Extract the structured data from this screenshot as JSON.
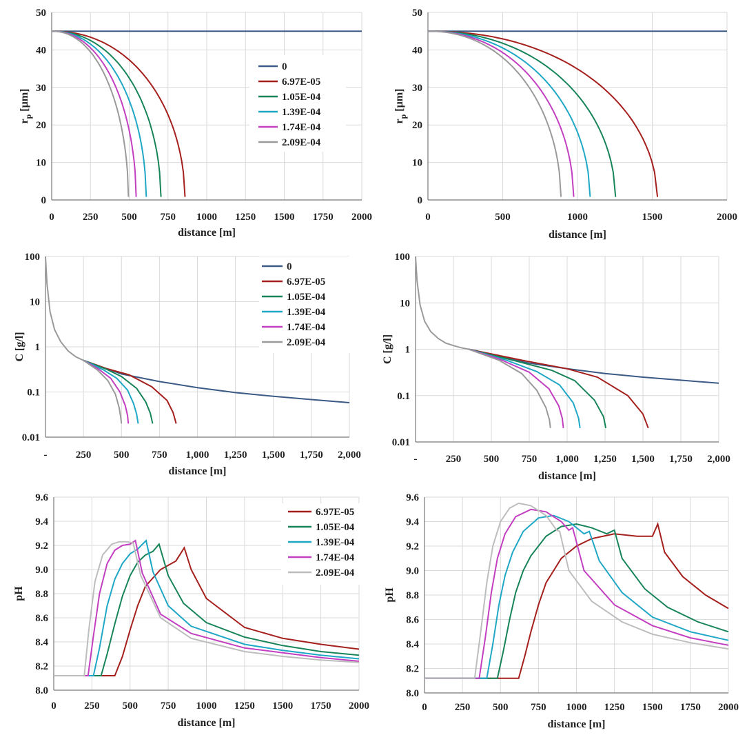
{
  "colors": {
    "0": "#3b5a86",
    "6.97E-05": "#a5201d",
    "1.05E-04": "#178459",
    "1.39E-04": "#1fa7c6",
    "1.74E-04": "#c33fc1",
    "2.09E-04": "#9a9a9a",
    "ph_cyan": "#33cccc",
    "ph_grey": "#bdbdbd",
    "grid": "#d9d9d9",
    "axis": "#777777"
  },
  "chart_data": [
    {
      "id": "rp-a",
      "type": "line",
      "xlabel": "distance  [m]",
      "ylabel": "r",
      "ylabel_sub": "p",
      "ylabel_unit": " [µm]",
      "xlim": [
        0,
        2000
      ],
      "ylim": [
        0,
        50
      ],
      "xticks": [
        0,
        250,
        500,
        750,
        1000,
        1250,
        1500,
        1750,
        2000
      ],
      "xtick_labels": [
        "0",
        "250",
        "500",
        "750",
        "1000",
        "1250",
        "1500",
        "1750",
        "2000"
      ],
      "yticks": [
        0,
        10,
        20,
        30,
        40,
        50
      ],
      "ytick_labels": [
        "0",
        "10",
        "20",
        "30",
        "40",
        "50"
      ],
      "legend": [
        "0",
        "6.97E-05",
        "1.05E-04",
        "1.39E-04",
        "1.74E-04",
        "2.09E-04"
      ],
      "series": [
        {
          "name": "0",
          "end_x": 2000,
          "r0": 45
        },
        {
          "name": "6.97E-05",
          "end_x": 860,
          "r0": 45
        },
        {
          "name": "1.05E-04",
          "end_x": 705,
          "r0": 45
        },
        {
          "name": "1.39E-04",
          "end_x": 610,
          "r0": 45
        },
        {
          "name": "1.74E-04",
          "end_x": 545,
          "r0": 45
        },
        {
          "name": "2.09E-04",
          "end_x": 495,
          "r0": 45
        }
      ]
    },
    {
      "id": "rp-b",
      "type": "line",
      "xlabel": "distance  [m]",
      "ylabel": "r",
      "ylabel_sub": "p",
      "ylabel_unit": " [µm]",
      "xlim": [
        0,
        2000
      ],
      "ylim": [
        0,
        50
      ],
      "xticks": [
        0,
        500,
        1000,
        1500,
        2000
      ],
      "xtick_labels": [
        "0",
        "500",
        "1000",
        "1500",
        "2000"
      ],
      "yticks": [
        0,
        10,
        20,
        30,
        40,
        50
      ],
      "ytick_labels": [
        "0",
        "10",
        "20",
        "30",
        "40",
        "50"
      ],
      "series": [
        {
          "name": "0",
          "end_x": 2000,
          "r0": 45
        },
        {
          "name": "6.97E-05",
          "end_x": 1535,
          "r0": 45
        },
        {
          "name": "1.05E-04",
          "end_x": 1255,
          "r0": 45
        },
        {
          "name": "1.39E-04",
          "end_x": 1085,
          "r0": 45
        },
        {
          "name": "1.74E-04",
          "end_x": 975,
          "r0": 45
        },
        {
          "name": "2.09E-04",
          "end_x": 890,
          "r0": 45
        }
      ]
    },
    {
      "id": "c-a",
      "type": "line",
      "xlabel": "distance  [m]",
      "ylabel": "C [g/l]",
      "xlim": [
        0,
        2000
      ],
      "ylim": [
        0.01,
        100
      ],
      "yscale": "log",
      "xticks": [
        0,
        250,
        500,
        750,
        1000,
        1250,
        1500,
        1750,
        2000
      ],
      "xtick_labels": [
        "-",
        "250",
        "500",
        "750",
        "1,000",
        "1,250",
        "1,500",
        "1,750",
        "2,000"
      ],
      "yticks": [
        0.01,
        0.1,
        1,
        10,
        100
      ],
      "ytick_labels": [
        "0.01",
        "0.1",
        "1",
        "10",
        "100"
      ],
      "legend": [
        "0",
        "6.97E-05",
        "1.05E-04",
        "1.39E-04",
        "1.74E-04",
        "2.09E-04"
      ],
      "shared_head": {
        "x": [
          0,
          10,
          30,
          60,
          100,
          150,
          200,
          250
        ],
        "y": [
          100,
          25,
          6,
          2.4,
          1.3,
          0.8,
          0.6,
          0.5
        ]
      },
      "series": [
        {
          "name": "0",
          "x": [
            250,
            500,
            750,
            1000,
            1250,
            1500,
            1750,
            2000
          ],
          "y": [
            0.5,
            0.25,
            0.17,
            0.125,
            0.097,
            0.08,
            0.068,
            0.058
          ]
        },
        {
          "name": "6.97E-05",
          "x": [
            250,
            400,
            550,
            700,
            800,
            840,
            860
          ],
          "y": [
            0.5,
            0.33,
            0.24,
            0.13,
            0.065,
            0.035,
            0.02
          ]
        },
        {
          "name": "1.05E-04",
          "x": [
            250,
            400,
            500,
            600,
            660,
            690,
            705
          ],
          "y": [
            0.5,
            0.32,
            0.22,
            0.12,
            0.06,
            0.034,
            0.02
          ]
        },
        {
          "name": "1.39E-04",
          "x": [
            250,
            380,
            470,
            540,
            580,
            600,
            610
          ],
          "y": [
            0.5,
            0.31,
            0.2,
            0.11,
            0.055,
            0.032,
            0.02
          ]
        },
        {
          "name": "1.74E-04",
          "x": [
            250,
            350,
            430,
            490,
            525,
            540,
            545
          ],
          "y": [
            0.5,
            0.32,
            0.2,
            0.1,
            0.05,
            0.03,
            0.02
          ]
        },
        {
          "name": "2.09E-04",
          "x": [
            250,
            340,
            410,
            460,
            485,
            495,
            500
          ],
          "y": [
            0.5,
            0.31,
            0.18,
            0.09,
            0.045,
            0.028,
            0.02
          ]
        }
      ]
    },
    {
      "id": "c-b",
      "type": "line",
      "xlabel": "distance  [m]",
      "ylabel": "C [g/l]",
      "xlim": [
        0,
        2000
      ],
      "ylim": [
        0.01,
        100
      ],
      "yscale": "log",
      "xticks": [
        0,
        250,
        500,
        750,
        1000,
        1250,
        1500,
        1750,
        2000
      ],
      "xtick_labels": [
        "-",
        "250",
        "500",
        "750",
        "1,000",
        "1,250",
        "1,500",
        "1,750",
        "2,000"
      ],
      "yticks": [
        0.01,
        0.1,
        1,
        10,
        100
      ],
      "ytick_labels": [
        "0.01",
        "0.1",
        "1",
        "10",
        "100"
      ],
      "shared_head": {
        "x": [
          0,
          10,
          30,
          60,
          100,
          150,
          200,
          250,
          300,
          350
        ],
        "y": [
          100,
          30,
          9,
          4,
          2.4,
          1.7,
          1.35,
          1.2,
          1.08,
          1.0
        ]
      },
      "series": [
        {
          "name": "0",
          "x": [
            350,
            500,
            750,
            1000,
            1250,
            1500,
            1750,
            2000
          ],
          "y": [
            1.0,
            0.75,
            0.5,
            0.38,
            0.3,
            0.25,
            0.215,
            0.185
          ]
        },
        {
          "name": "6.97E-05",
          "x": [
            350,
            700,
            1000,
            1200,
            1400,
            1500,
            1535
          ],
          "y": [
            1.0,
            0.58,
            0.38,
            0.25,
            0.1,
            0.04,
            0.02
          ]
        },
        {
          "name": "1.05E-04",
          "x": [
            350,
            650,
            900,
            1050,
            1180,
            1240,
            1255
          ],
          "y": [
            1.0,
            0.57,
            0.35,
            0.21,
            0.08,
            0.035,
            0.02
          ]
        },
        {
          "name": "1.39E-04",
          "x": [
            350,
            600,
            800,
            950,
            1040,
            1075,
            1085
          ],
          "y": [
            1.0,
            0.58,
            0.33,
            0.17,
            0.07,
            0.033,
            0.02
          ]
        },
        {
          "name": "1.74E-04",
          "x": [
            350,
            550,
            750,
            880,
            945,
            968,
            975
          ],
          "y": [
            1.0,
            0.62,
            0.32,
            0.14,
            0.06,
            0.032,
            0.02
          ]
        },
        {
          "name": "2.09E-04",
          "x": [
            350,
            550,
            700,
            800,
            860,
            883,
            890
          ],
          "y": [
            1.0,
            0.58,
            0.3,
            0.13,
            0.055,
            0.03,
            0.02
          ]
        }
      ]
    },
    {
      "id": "ph-a",
      "type": "line",
      "xlabel": "distance [m]",
      "ylabel": "pH",
      "xlim": [
        0,
        2000
      ],
      "ylim": [
        8.0,
        9.6
      ],
      "xticks": [
        0,
        250,
        500,
        750,
        1000,
        1250,
        1500,
        1750,
        2000
      ],
      "xtick_labels": [
        "0",
        "250",
        "500",
        "750",
        "1000",
        "1250",
        "1500",
        "1750",
        "2000"
      ],
      "yticks": [
        8.0,
        8.2,
        8.4,
        8.6,
        8.8,
        9.0,
        9.2,
        9.4,
        9.6
      ],
      "ytick_labels": [
        "8.0",
        "8.2",
        "8.4",
        "8.6",
        "8.8",
        "9.0",
        "9.2",
        "9.4",
        "9.6"
      ],
      "legend": [
        "6.97E-05",
        "1.05E-04",
        "1.39E-04",
        "1.74E-04",
        "2.09E-04"
      ],
      "series": [
        {
          "name": "6.97E-05",
          "color_key": "6.97E-05",
          "x": [
            0,
            400,
            450,
            500,
            550,
            600,
            700,
            800,
            855,
            900,
            1000,
            1250,
            1500,
            1750,
            2000
          ],
          "y": [
            8.12,
            8.12,
            8.28,
            8.5,
            8.7,
            8.86,
            9.0,
            9.07,
            9.18,
            9.0,
            8.76,
            8.52,
            8.43,
            8.38,
            8.34
          ]
        },
        {
          "name": "1.05E-04",
          "color_key": "1.05E-04",
          "x": [
            0,
            310,
            350,
            400,
            450,
            500,
            550,
            600,
            650,
            690,
            750,
            850,
            1000,
            1250,
            1500,
            1750,
            2000
          ],
          "y": [
            8.12,
            8.12,
            8.3,
            8.55,
            8.78,
            8.95,
            9.06,
            9.12,
            9.15,
            9.21,
            8.95,
            8.72,
            8.56,
            8.44,
            8.37,
            8.32,
            8.29
          ]
        },
        {
          "name": "1.39E-04",
          "color_key": "1.39E-04",
          "x": [
            0,
            260,
            300,
            350,
            400,
            450,
            500,
            550,
            605,
            650,
            750,
            900,
            1250,
            1500,
            1750,
            2000
          ],
          "y": [
            8.12,
            8.12,
            8.35,
            8.7,
            8.92,
            9.05,
            9.13,
            9.17,
            9.24,
            8.98,
            8.7,
            8.53,
            8.38,
            8.33,
            8.29,
            8.26
          ]
        },
        {
          "name": "1.74E-04",
          "color_key": "1.74E-04",
          "x": [
            0,
            225,
            260,
            300,
            350,
            400,
            450,
            500,
            535,
            580,
            700,
            900,
            1250,
            1500,
            1750,
            2000
          ],
          "y": [
            8.12,
            8.12,
            8.45,
            8.8,
            9.05,
            9.16,
            9.2,
            9.21,
            9.24,
            8.97,
            8.63,
            8.47,
            8.35,
            8.31,
            8.27,
            8.24
          ]
        },
        {
          "name": "2.09E-04",
          "color_key": "ph_grey",
          "x": [
            0,
            200,
            230,
            270,
            320,
            380,
            430,
            480,
            520,
            570,
            700,
            900,
            1250,
            1500,
            1750,
            2000
          ],
          "y": [
            8.12,
            8.12,
            8.5,
            8.9,
            9.12,
            9.21,
            9.23,
            9.23,
            9.22,
            8.95,
            8.6,
            8.43,
            8.32,
            8.28,
            8.25,
            8.23
          ]
        }
      ]
    },
    {
      "id": "ph-b",
      "type": "line",
      "xlabel": "distance [m]",
      "ylabel": "pH",
      "xlim": [
        0,
        2000
      ],
      "ylim": [
        8.0,
        9.6
      ],
      "xticks": [
        0,
        250,
        500,
        750,
        1000,
        1250,
        1500,
        1750,
        2000
      ],
      "xtick_labels": [
        "0",
        "250",
        "500",
        "750",
        "1000",
        "1250",
        "1500",
        "1750",
        "2000"
      ],
      "yticks": [
        8.0,
        8.2,
        8.4,
        8.6,
        8.8,
        9.0,
        9.2,
        9.4,
        9.6
      ],
      "ytick_labels": [
        "8.0",
        "8.2",
        "8.4",
        "8.6",
        "8.8",
        "9.0",
        "9.2",
        "9.4",
        "9.6"
      ],
      "series": [
        {
          "name": "6.97E-05",
          "color_key": "6.97E-05",
          "x": [
            0,
            620,
            660,
            700,
            750,
            800,
            900,
            1000,
            1100,
            1250,
            1400,
            1500,
            1535,
            1580,
            1700,
            1850,
            2000
          ],
          "y": [
            8.12,
            8.12,
            8.3,
            8.5,
            8.72,
            8.9,
            9.1,
            9.2,
            9.26,
            9.3,
            9.28,
            9.28,
            9.38,
            9.15,
            8.95,
            8.8,
            8.69
          ]
        },
        {
          "name": "1.05E-04",
          "color_key": "1.05E-04",
          "x": [
            0,
            480,
            520,
            560,
            600,
            650,
            700,
            800,
            900,
            1000,
            1100,
            1200,
            1250,
            1300,
            1450,
            1600,
            1800,
            2000
          ],
          "y": [
            8.12,
            8.12,
            8.35,
            8.6,
            8.82,
            9.0,
            9.12,
            9.28,
            9.36,
            9.38,
            9.35,
            9.3,
            9.33,
            9.1,
            8.85,
            8.7,
            8.58,
            8.5
          ]
        },
        {
          "name": "1.39E-04",
          "color_key": "1.39E-04",
          "x": [
            0,
            410,
            450,
            490,
            530,
            580,
            650,
            750,
            850,
            950,
            1050,
            1085,
            1150,
            1300,
            1500,
            1750,
            2000
          ],
          "y": [
            8.12,
            8.12,
            8.4,
            8.72,
            8.96,
            9.15,
            9.32,
            9.43,
            9.45,
            9.4,
            9.3,
            9.32,
            9.08,
            8.82,
            8.62,
            8.5,
            8.43
          ]
        },
        {
          "name": "1.74E-04",
          "color_key": "1.74E-04",
          "x": [
            0,
            360,
            400,
            440,
            480,
            530,
            600,
            700,
            800,
            900,
            950,
            975,
            1050,
            1250,
            1500,
            1750,
            2000
          ],
          "y": [
            8.12,
            8.12,
            8.45,
            8.82,
            9.1,
            9.3,
            9.44,
            9.5,
            9.48,
            9.4,
            9.33,
            9.35,
            9.0,
            8.72,
            8.55,
            8.45,
            8.39
          ]
        },
        {
          "name": "2.09E-04",
          "color_key": "ph_grey",
          "x": [
            0,
            330,
            370,
            410,
            450,
            500,
            560,
            620,
            700,
            800,
            870,
            890,
            950,
            1100,
            1300,
            1500,
            1750,
            2000
          ],
          "y": [
            8.12,
            8.12,
            8.5,
            8.9,
            9.2,
            9.4,
            9.51,
            9.55,
            9.53,
            9.45,
            9.33,
            9.32,
            9.0,
            8.75,
            8.58,
            8.48,
            8.41,
            8.36
          ]
        }
      ]
    }
  ]
}
